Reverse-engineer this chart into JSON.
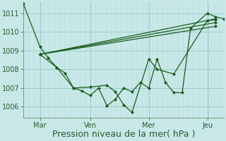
{
  "background_color": "#c8e8e8",
  "grid_major_color": "#99cccc",
  "grid_minor_color": "#b8dede",
  "line_color": "#1a5c1a",
  "marker_color": "#1a5c1a",
  "xlabel": "Pression niveau de la mer( hPa )",
  "xlabel_fontsize": 9,
  "xlabel_color": "#2a5a2a",
  "ytick_fontsize": 7,
  "xtick_fontsize": 7,
  "ytick_color": "#2a5a2a",
  "xtick_color": "#2a5a2a",
  "ylim": [
    1005.4,
    1011.6
  ],
  "yticks": [
    1006,
    1007,
    1008,
    1009,
    1010,
    1011
  ],
  "xlim": [
    0,
    12.0
  ],
  "xtick_positions": [
    1.0,
    4.0,
    7.5,
    11.0
  ],
  "xtick_labels": [
    "Mar",
    "Ven",
    "Mer",
    "Jeu"
  ],
  "vline_positions": [
    1.0,
    4.0,
    7.5,
    11.0
  ],
  "series": [
    {
      "x": [
        0.0,
        1.0,
        1.5,
        2.0,
        2.5,
        3.0,
        3.5,
        4.0,
        4.5,
        5.0,
        5.5,
        6.0,
        6.5,
        7.0,
        7.5,
        8.0,
        8.5,
        9.0,
        9.5,
        10.0,
        11.0,
        11.5,
        12.0
      ],
      "y": [
        1011.5,
        1009.2,
        1008.6,
        1008.1,
        1007.8,
        1007.0,
        1006.85,
        1006.6,
        1007.0,
        1006.05,
        1006.4,
        1007.0,
        1006.8,
        1007.3,
        1007.0,
        1008.55,
        1007.3,
        1006.75,
        1006.75,
        1010.2,
        1011.0,
        1010.8,
        1010.7
      ]
    },
    {
      "x": [
        1.0,
        2.0,
        3.0,
        4.0,
        5.0,
        5.5,
        6.0,
        6.5,
        7.5,
        8.0,
        9.0,
        11.0,
        11.5
      ],
      "y": [
        1008.8,
        1008.1,
        1007.0,
        1007.05,
        1007.15,
        1006.8,
        1006.1,
        1005.7,
        1008.55,
        1008.0,
        1007.75,
        1010.6,
        1010.65
      ]
    },
    {
      "x": [
        1.0,
        11.5
      ],
      "y": [
        1008.8,
        1010.7
      ]
    },
    {
      "x": [
        1.0,
        11.5
      ],
      "y": [
        1008.8,
        1010.5
      ]
    },
    {
      "x": [
        1.0,
        11.5
      ],
      "y": [
        1008.8,
        1010.3
      ]
    }
  ]
}
